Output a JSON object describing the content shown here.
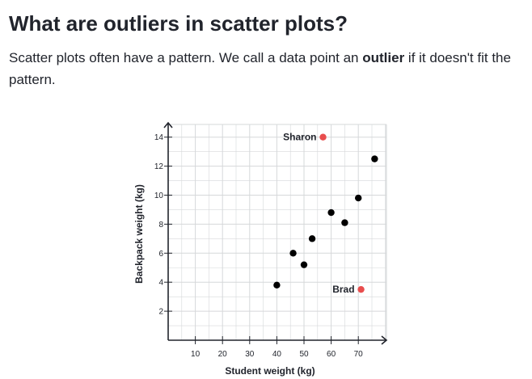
{
  "heading": "What are outliers in scatter plots?",
  "intro": {
    "before": "Scatter plots often have a pattern. We call a data point an ",
    "term": "outlier",
    "after": " if it doesn't fit the pattern."
  },
  "chart_data": {
    "type": "scatter",
    "xlabel": "Student weight (kg)",
    "ylabel": "Backpack weight (kg)",
    "xlim": [
      0,
      80
    ],
    "ylim": [
      0,
      15
    ],
    "xticks": [
      10,
      20,
      30,
      40,
      50,
      60,
      70
    ],
    "yticks": [
      2,
      4,
      6,
      8,
      10,
      12,
      14
    ],
    "grid": true,
    "points": [
      {
        "x": 40,
        "y": 3.8,
        "label": "",
        "outlier": false
      },
      {
        "x": 46,
        "y": 6,
        "label": "",
        "outlier": false
      },
      {
        "x": 50,
        "y": 5.2,
        "label": "",
        "outlier": false
      },
      {
        "x": 53,
        "y": 7,
        "label": "",
        "outlier": false
      },
      {
        "x": 60,
        "y": 8.8,
        "label": "",
        "outlier": false
      },
      {
        "x": 65,
        "y": 8.1,
        "label": "",
        "outlier": false
      },
      {
        "x": 70,
        "y": 9.8,
        "label": "",
        "outlier": false
      },
      {
        "x": 76,
        "y": 12.5,
        "label": "",
        "outlier": false
      },
      {
        "x": 57,
        "y": 14,
        "label": "Sharon",
        "outlier": true
      },
      {
        "x": 71,
        "y": 3.5,
        "label": "Brad",
        "outlier": true
      }
    ],
    "colors": {
      "normal": "#000000",
      "outlier": "#e84d4d",
      "grid": "#d6d8da",
      "axis": "#21242c"
    }
  }
}
